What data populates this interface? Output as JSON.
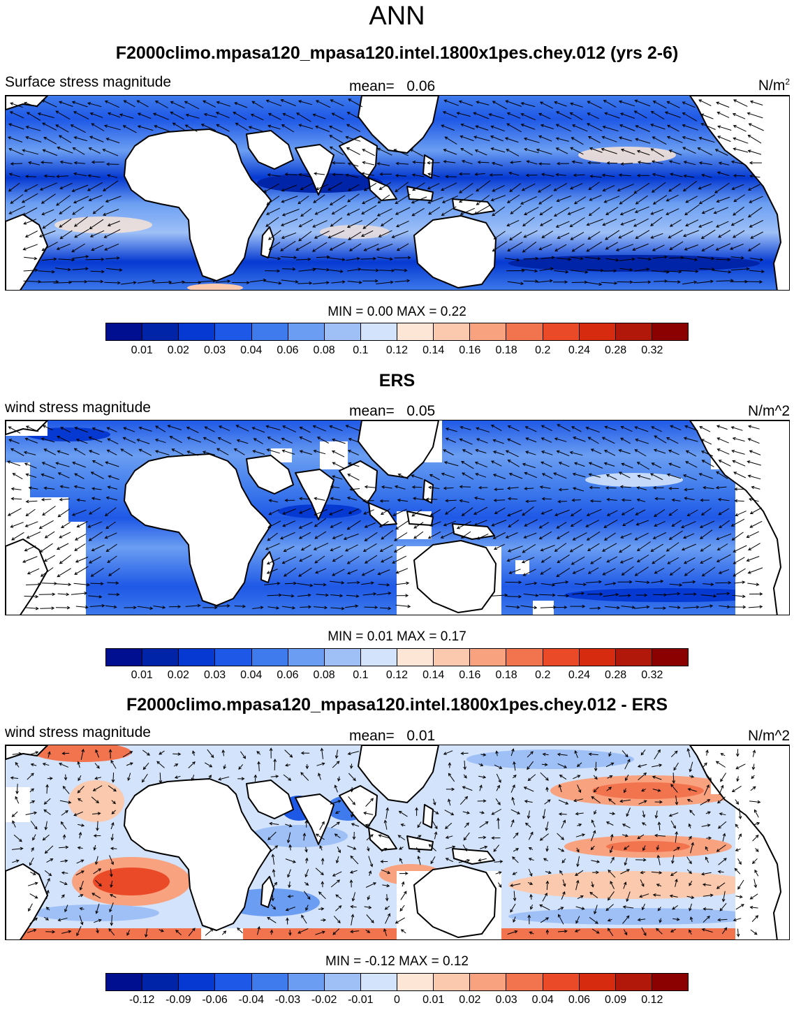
{
  "title": "ANN",
  "colors": {
    "land": "#ffffff",
    "coast": "#000000",
    "bwr": [
      "#000f8f",
      "#0024a8",
      "#0539d1",
      "#1e58e6",
      "#3f7bec",
      "#6b9ef2",
      "#9ec0f7",
      "#d3e3fb",
      "#fde6d6",
      "#fbc9ad",
      "#f8a27f",
      "#f2744f",
      "#ea4a27",
      "#d72b10",
      "#b1180a",
      "#8b0000"
    ]
  },
  "panels": [
    {
      "title": "F2000climo.mpasa120_mpasa120.intel.1800x1pes.chey.012 (yrs 2-6)",
      "variable": "Surface stress magnitude",
      "mean_label": "mean=",
      "mean_value": "0.06",
      "units_base": "N/m",
      "units_sup": "2",
      "min_label": "MIN =",
      "min_value": "0.00",
      "max_label": "MAX =",
      "max_value": "0.22",
      "colorbar_ticks": [
        "0.01",
        "0.02",
        "0.03",
        "0.04",
        "0.06",
        "0.08",
        "0.1",
        "0.12",
        "0.14",
        "0.16",
        "0.18",
        "0.2",
        "0.24",
        "0.28",
        "0.32"
      ]
    },
    {
      "title": "ERS",
      "variable": "wind stress magnitude",
      "mean_label": "mean=",
      "mean_value": "0.05",
      "units": "N/m^2",
      "min_label": "MIN =",
      "min_value": "0.01",
      "max_label": "MAX =",
      "max_value": "0.17",
      "colorbar_ticks": [
        "0.01",
        "0.02",
        "0.03",
        "0.04",
        "0.06",
        "0.08",
        "0.1",
        "0.12",
        "0.14",
        "0.16",
        "0.18",
        "0.2",
        "0.24",
        "0.28",
        "0.32"
      ]
    },
    {
      "title": "F2000climo.mpasa120_mpasa120.intel.1800x1pes.chey.012 - ERS",
      "variable": "wind stress magnitude",
      "mean_label": "mean=",
      "mean_value": "0.01",
      "units": "N/m^2",
      "min_label": "MIN =",
      "min_value": "-0.12",
      "max_label": "MAX =",
      "max_value": "0.12",
      "colorbar_ticks": [
        "-0.12",
        "-0.09",
        "-0.06",
        "-0.04",
        "-0.03",
        "-0.02",
        "-0.01",
        "0",
        "0.01",
        "0.02",
        "0.03",
        "0.04",
        "0.06",
        "0.09",
        "0.12"
      ]
    }
  ]
}
